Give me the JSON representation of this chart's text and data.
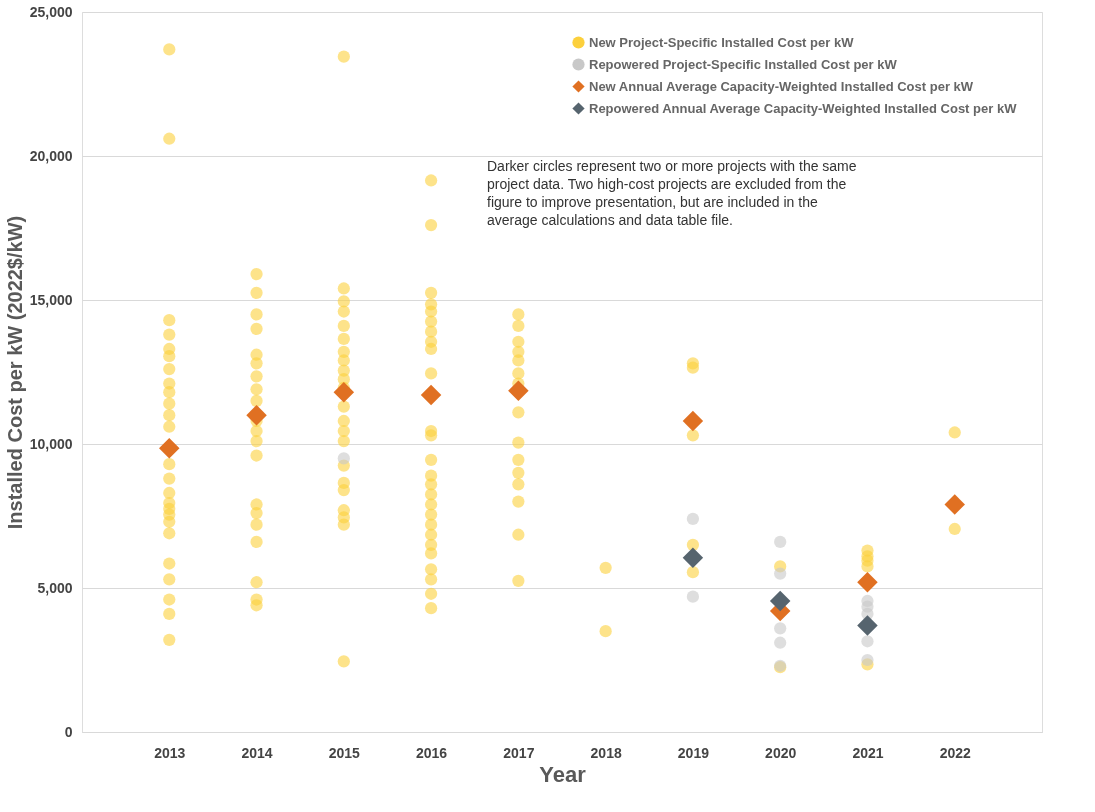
{
  "chart_data": {
    "type": "scatter",
    "xlabel": "Year",
    "ylabel": "Installed Cost per kW (2022$/kW)",
    "xlim": [
      2012,
      2023
    ],
    "xticks": [
      2013,
      2014,
      2015,
      2016,
      2017,
      2018,
      2019,
      2020,
      2021,
      2022
    ],
    "ylim": [
      0,
      25000
    ],
    "yticks": [
      0,
      {
        "value": 5000,
        "label": "5,000"
      },
      {
        "value": 10000,
        "label": "10,000"
      },
      {
        "value": 15000,
        "label": "15,000"
      },
      {
        "value": 20000,
        "label": "20,000"
      },
      {
        "value": 25000,
        "label": "25,000"
      }
    ],
    "grid": "y",
    "legend": "top right",
    "annotations": [
      "Darker circles represent two or more projects with the same project data. Two high-cost projects are excluded from the figure to improve presentation, but are included in the average calculations and data table file."
    ],
    "series": [
      {
        "name": "New Project-Specific Installed Cost per kW",
        "color": "#fcd03c",
        "marker": "circle",
        "x": [
          2013,
          2013,
          2013,
          2013,
          2013,
          2013,
          2013,
          2013,
          2013,
          2013,
          2013,
          2013,
          2013,
          2013,
          2013,
          2013,
          2013,
          2013,
          2013,
          2013,
          2013,
          2013,
          2013,
          2013,
          2013,
          2014,
          2014,
          2014,
          2014,
          2014,
          2014,
          2014,
          2014,
          2014,
          2014,
          2014,
          2014,
          2014,
          2014,
          2014,
          2014,
          2014,
          2014,
          2014,
          2014,
          2015,
          2015,
          2015,
          2015,
          2015,
          2015,
          2015,
          2015,
          2015,
          2015,
          2015,
          2015,
          2015,
          2015,
          2015,
          2015,
          2015,
          2015,
          2015,
          2015,
          2015,
          2015,
          2016,
          2016,
          2016,
          2016,
          2016,
          2016,
          2016,
          2016,
          2016,
          2016,
          2016,
          2016,
          2016,
          2016,
          2016,
          2016,
          2016,
          2016,
          2016,
          2016,
          2016,
          2016,
          2016,
          2016,
          2016,
          2016,
          2017,
          2017,
          2017,
          2017,
          2017,
          2017,
          2017,
          2017,
          2017,
          2017,
          2017,
          2017,
          2017,
          2017,
          2017,
          2018,
          2018,
          2019,
          2019,
          2019,
          2019,
          2019,
          2020,
          2020,
          2021,
          2021,
          2021,
          2021,
          2021,
          2022,
          2022
        ],
        "values": [
          23700,
          20600,
          14300,
          13800,
          13300,
          13050,
          12600,
          12100,
          11800,
          11400,
          11000,
          10600,
          9300,
          8800,
          8300,
          7950,
          7750,
          7550,
          7300,
          6900,
          5850,
          5300,
          4600,
          4100,
          3200,
          15900,
          15250,
          14500,
          14000,
          13100,
          12800,
          12350,
          11900,
          11500,
          10800,
          10450,
          10100,
          9600,
          7900,
          7600,
          7200,
          6600,
          5200,
          4600,
          4400,
          23450,
          15400,
          14950,
          14600,
          14100,
          13650,
          13200,
          12900,
          12550,
          12250,
          11950,
          11300,
          10800,
          10450,
          10100,
          9250,
          8650,
          8400,
          7700,
          7450,
          7200,
          2450,
          19150,
          17600,
          15250,
          14850,
          14600,
          14250,
          13900,
          13550,
          13300,
          12450,
          10450,
          10300,
          9450,
          8900,
          8600,
          8250,
          7900,
          7550,
          7200,
          6850,
          6500,
          6200,
          5650,
          5300,
          4800,
          4300,
          14500,
          14100,
          13550,
          13200,
          12900,
          12450,
          12100,
          11100,
          10050,
          9450,
          9000,
          8600,
          8000,
          6850,
          5250,
          5700,
          3500,
          12800,
          12650,
          10300,
          6500,
          5550,
          5750,
          2250,
          6300,
          6100,
          5950,
          5750,
          2350,
          10400,
          7050
        ]
      },
      {
        "name": "Repowered Project-Specific Installed Cost per kW",
        "color": "#c8c8c8",
        "marker": "circle",
        "x": [
          2015,
          2019,
          2019,
          2020,
          2020,
          2020,
          2020,
          2020,
          2021,
          2021,
          2021,
          2021,
          2021
        ],
        "values": [
          9500,
          7400,
          4700,
          6600,
          5500,
          3600,
          3100,
          2300,
          4550,
          4350,
          4100,
          3150,
          2500
        ]
      },
      {
        "name": "New Annual Average Capacity-Weighted Installed Cost per kW",
        "color": "#e07022",
        "marker": "diamond",
        "x": [
          2013,
          2014,
          2015,
          2016,
          2017,
          2019,
          2020,
          2021,
          2022
        ],
        "values": [
          9850,
          11000,
          11800,
          11700,
          11850,
          10800,
          4200,
          5200,
          7900
        ]
      },
      {
        "name": "Repowered Annual Average Capacity-Weighted Installed Cost per kW",
        "color": "#56646e",
        "marker": "diamond",
        "x": [
          2019,
          2020,
          2021
        ],
        "values": [
          6050,
          4550,
          3700
        ]
      }
    ]
  }
}
